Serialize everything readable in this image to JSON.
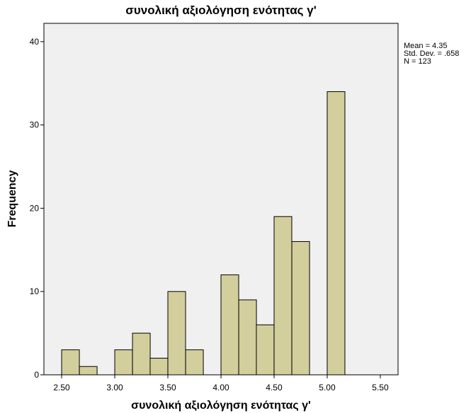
{
  "chart_data": {
    "type": "bar",
    "title": "συνολική αξιολόγηση ενότητας γ'",
    "xlabel": "συνολική αξιολόγηση ενότητας γ'",
    "ylabel": "Frequency",
    "xlim": [
      2.333,
      5.667
    ],
    "ylim": [
      0,
      42.2
    ],
    "bin_width": 0.1667,
    "x_ticks": [
      "2.50",
      "3.00",
      "3.50",
      "4.00",
      "4.50",
      "5.00",
      "5.50"
    ],
    "x_tick_values": [
      2.5,
      3.0,
      3.5,
      4.0,
      4.5,
      5.0,
      5.5
    ],
    "y_ticks": [
      "0",
      "10",
      "20",
      "30",
      "40"
    ],
    "y_tick_values": [
      0,
      10,
      20,
      30,
      40
    ],
    "bins": [
      {
        "start": 2.5,
        "count": 3
      },
      {
        "start": 2.667,
        "count": 1
      },
      {
        "start": 2.833,
        "count": 0
      },
      {
        "start": 3.0,
        "count": 3
      },
      {
        "start": 3.167,
        "count": 5
      },
      {
        "start": 3.333,
        "count": 2
      },
      {
        "start": 3.5,
        "count": 10
      },
      {
        "start": 3.667,
        "count": 3
      },
      {
        "start": 3.833,
        "count": 0
      },
      {
        "start": 4.0,
        "count": 12
      },
      {
        "start": 4.167,
        "count": 9
      },
      {
        "start": 4.333,
        "count": 6
      },
      {
        "start": 4.5,
        "count": 19
      },
      {
        "start": 4.667,
        "count": 16
      },
      {
        "start": 4.833,
        "count": 0
      },
      {
        "start": 5.0,
        "count": 34
      }
    ],
    "stats": {
      "mean": "Mean = 4.35",
      "std_dev": "Std. Dev. = .658",
      "n": "N = 123"
    },
    "colors": {
      "bar_fill": "#d3cf9d",
      "bar_stroke": "#000000",
      "plot_background": "#f0f0f0"
    },
    "grid": false
  }
}
